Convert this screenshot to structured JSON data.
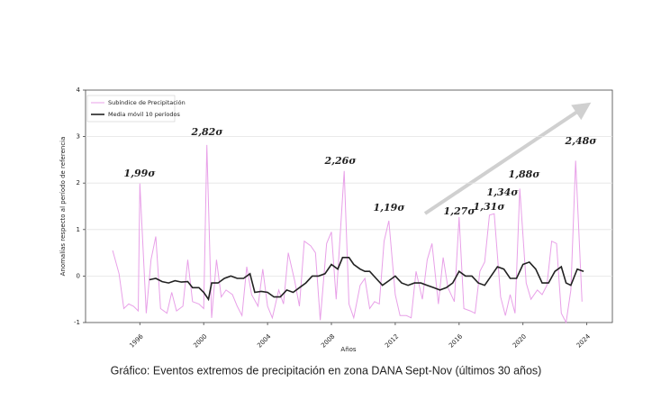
{
  "chart_data": {
    "type": "line",
    "caption": "Gráfico: Eventos extremos de precipitación en zona DANA Sept-Nov (últimos 30 años)",
    "x_label": "Años",
    "y_label": "Anomalías respecto al período de referencia",
    "xlim": [
      1992.6,
      2025.6
    ],
    "xticks": [
      1996,
      2000,
      2004,
      2008,
      2012,
      2016,
      2020,
      2024
    ],
    "ylim": [
      -1,
      4
    ],
    "yticks": [
      -1,
      0,
      1,
      2,
      3,
      4
    ],
    "grid": true,
    "legend": "upper left",
    "series": [
      {
        "name": "Subíndice de Precipitación",
        "color": "#e8a0e8",
        "x": [
          1994.3,
          1994.7,
          1995.0,
          1995.3,
          1995.6,
          1995.9,
          1996.0,
          1996.4,
          1996.7,
          1997.0,
          1997.3,
          1997.7,
          1998.0,
          1998.3,
          1998.7,
          1999.0,
          1999.3,
          1999.7,
          2000.0,
          2000.2,
          2000.5,
          2000.8,
          2001.1,
          2001.4,
          2001.8,
          2002.1,
          2002.4,
          2002.7,
          2003.0,
          2003.4,
          2003.7,
          2004.0,
          2004.3,
          2004.7,
          2005.0,
          2005.3,
          2005.7,
          2006.0,
          2006.3,
          2006.7,
          2007.0,
          2007.3,
          2007.7,
          2008.0,
          2008.3,
          2008.8,
          2009.1,
          2009.4,
          2009.8,
          2010.1,
          2010.4,
          2010.7,
          2011.0,
          2011.3,
          2011.6,
          2012.0,
          2012.3,
          2012.7,
          2013.0,
          2013.3,
          2013.7,
          2014.0,
          2014.3,
          2014.7,
          2015.0,
          2015.3,
          2015.7,
          2016.0,
          2016.3,
          2016.7,
          2017.0,
          2017.3,
          2017.6,
          2017.9,
          2018.2,
          2018.6,
          2018.9,
          2019.2,
          2019.5,
          2019.8,
          2020.2,
          2020.5,
          2020.9,
          2021.2,
          2021.5,
          2021.8,
          2022.1,
          2022.4,
          2022.7,
          2023.0,
          2023.3,
          2023.7
        ],
        "values": [
          0.55,
          0.05,
          -0.7,
          -0.6,
          -0.65,
          -0.75,
          1.99,
          -0.8,
          0.35,
          0.85,
          -0.7,
          -0.8,
          -0.35,
          -0.75,
          -0.65,
          0.35,
          -0.55,
          -0.6,
          -0.7,
          2.82,
          -0.9,
          0.35,
          -0.45,
          -0.3,
          -0.4,
          -0.65,
          -0.85,
          0.2,
          -0.4,
          -0.65,
          0.15,
          -0.65,
          -0.9,
          -0.3,
          -0.6,
          0.5,
          -0.1,
          -0.65,
          0.75,
          0.65,
          0.5,
          -0.95,
          0.7,
          0.95,
          -0.5,
          2.26,
          -0.6,
          -0.9,
          -0.2,
          -0.05,
          -0.7,
          -0.55,
          -0.6,
          0.75,
          1.19,
          -0.4,
          -0.85,
          -0.85,
          -0.9,
          0.1,
          -0.5,
          0.35,
          0.7,
          -0.6,
          0.4,
          -0.25,
          -0.55,
          1.27,
          -0.7,
          -0.75,
          -0.8,
          0.1,
          0.3,
          1.31,
          1.34,
          -0.45,
          -0.85,
          -0.4,
          -0.8,
          1.88,
          -0.15,
          -0.5,
          -0.3,
          -0.4,
          -0.2,
          0.75,
          0.7,
          -0.8,
          -1.0,
          -0.3,
          2.48,
          -0.55
        ]
      },
      {
        "name": "Media móvil 10 períodos",
        "color": "#222222",
        "x": [
          1996.6,
          1997.0,
          1997.4,
          1997.8,
          1998.2,
          1998.6,
          1999.0,
          1999.3,
          1999.7,
          2000.0,
          2000.3,
          2000.5,
          2000.9,
          2001.3,
          2001.7,
          2002.1,
          2002.5,
          2002.9,
          2003.2,
          2003.6,
          2004.0,
          2004.4,
          2004.8,
          2005.2,
          2005.6,
          2006.0,
          2006.4,
          2006.8,
          2007.2,
          2007.6,
          2008.0,
          2008.4,
          2008.7,
          2009.1,
          2009.4,
          2009.8,
          2010.1,
          2010.4,
          2010.8,
          2011.2,
          2011.6,
          2012.0,
          2012.4,
          2012.8,
          2013.2,
          2013.6,
          2014.0,
          2014.4,
          2014.8,
          2015.2,
          2015.6,
          2016.0,
          2016.4,
          2016.8,
          2017.2,
          2017.6,
          2018.0,
          2018.4,
          2018.8,
          2019.2,
          2019.6,
          2020.0,
          2020.4,
          2020.8,
          2021.2,
          2021.6,
          2022.0,
          2022.4,
          2022.7,
          2023.0,
          2023.4,
          2023.8
        ],
        "values": [
          -0.08,
          -0.05,
          -0.12,
          -0.15,
          -0.1,
          -0.13,
          -0.12,
          -0.25,
          -0.25,
          -0.35,
          -0.5,
          -0.15,
          -0.15,
          -0.05,
          0.0,
          -0.05,
          -0.05,
          0.05,
          -0.35,
          -0.33,
          -0.35,
          -0.45,
          -0.45,
          -0.3,
          -0.35,
          -0.25,
          -0.15,
          0.0,
          0.0,
          0.05,
          0.25,
          0.15,
          0.4,
          0.4,
          0.25,
          0.15,
          0.1,
          0.1,
          -0.05,
          -0.2,
          -0.1,
          0.0,
          -0.15,
          -0.2,
          -0.15,
          -0.15,
          -0.2,
          -0.25,
          -0.3,
          -0.25,
          -0.15,
          0.1,
          0.0,
          0.0,
          -0.15,
          -0.2,
          0.0,
          0.2,
          0.15,
          -0.05,
          -0.05,
          0.25,
          0.3,
          0.15,
          -0.15,
          -0.15,
          0.1,
          0.2,
          -0.15,
          -0.2,
          0.15,
          0.1
        ]
      }
    ],
    "annotations": [
      {
        "text": "1,99σ",
        "color": "#2a6fb5"
      },
      {
        "text": "2,82σ",
        "color": "#2a6fb5"
      },
      {
        "text": "2,26σ",
        "color": "#2a6fb5"
      },
      {
        "text": "1,19σ",
        "color": "#2a6fb5"
      },
      {
        "text": "1,27σ",
        "color": "#cc1111"
      },
      {
        "text": "1,31σ",
        "color": "#cc1111"
      },
      {
        "text": "1,34σ",
        "color": "#cc1111"
      },
      {
        "text": "1,88σ",
        "color": "#cc1111"
      },
      {
        "text": "2,48σ",
        "color": "#cc1111"
      }
    ]
  }
}
